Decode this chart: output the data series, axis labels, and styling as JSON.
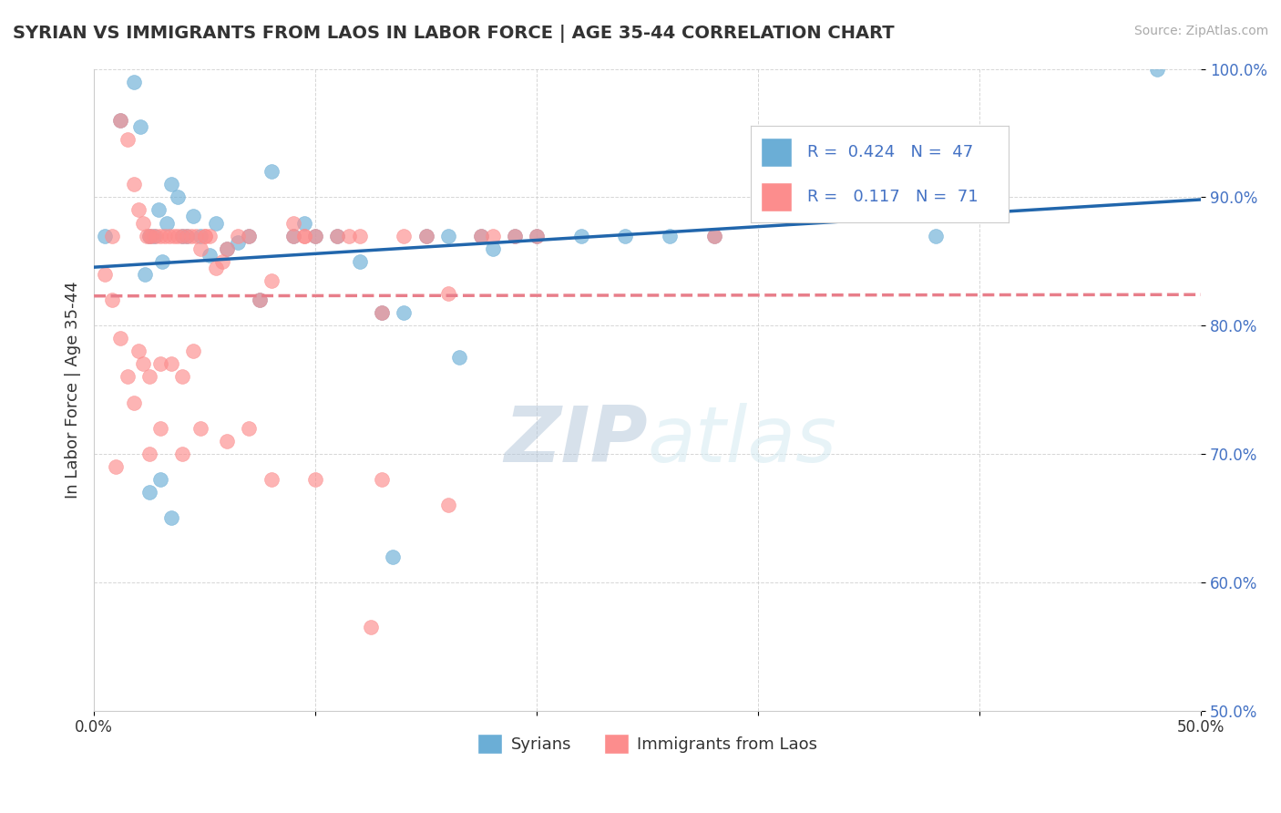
{
  "title": "SYRIAN VS IMMIGRANTS FROM LAOS IN LABOR FORCE | AGE 35-44 CORRELATION CHART",
  "source": "Source: ZipAtlas.com",
  "ylabel": "In Labor Force | Age 35-44",
  "xlim": [
    0.0,
    0.5
  ],
  "ylim": [
    0.5,
    1.0
  ],
  "y_ticks": [
    0.5,
    0.6,
    0.7,
    0.8,
    0.9,
    1.0
  ],
  "y_tick_labels": [
    "50.0%",
    "60.0%",
    "70.0%",
    "80.0%",
    "90.0%",
    "100.0%"
  ],
  "blue_color": "#6baed6",
  "pink_color": "#fc8d8d",
  "blue_line_color": "#2166ac",
  "pink_line_color": "#e87e8a",
  "legend_r_blue": "0.424",
  "legend_n_blue": "47",
  "legend_r_pink": "0.117",
  "legend_n_pink": "71",
  "legend_label_blue": "Syrians",
  "legend_label_pink": "Immigrants from Laos",
  "watermark_zip": "ZIP",
  "watermark_atlas": "atlas",
  "blue_x": [
    0.005,
    0.012,
    0.018,
    0.021,
    0.023,
    0.025,
    0.027,
    0.029,
    0.031,
    0.033,
    0.035,
    0.038,
    0.04,
    0.042,
    0.045,
    0.048,
    0.052,
    0.055,
    0.06,
    0.065,
    0.07,
    0.075,
    0.08,
    0.09,
    0.095,
    0.1,
    0.11,
    0.12,
    0.13,
    0.14,
    0.15,
    0.16,
    0.175,
    0.18,
    0.19,
    0.2,
    0.22,
    0.24,
    0.26,
    0.28,
    0.03,
    0.035,
    0.025,
    0.165,
    0.135,
    0.38,
    0.48
  ],
  "blue_y": [
    0.87,
    0.96,
    0.99,
    0.955,
    0.84,
    0.87,
    0.87,
    0.89,
    0.85,
    0.88,
    0.91,
    0.9,
    0.87,
    0.87,
    0.885,
    0.87,
    0.855,
    0.88,
    0.86,
    0.865,
    0.87,
    0.82,
    0.92,
    0.87,
    0.88,
    0.87,
    0.87,
    0.85,
    0.81,
    0.81,
    0.87,
    0.87,
    0.87,
    0.86,
    0.87,
    0.87,
    0.87,
    0.87,
    0.87,
    0.87,
    0.68,
    0.65,
    0.67,
    0.775,
    0.62,
    0.87,
    1.0
  ],
  "pink_x": [
    0.005,
    0.008,
    0.012,
    0.015,
    0.018,
    0.02,
    0.022,
    0.024,
    0.026,
    0.028,
    0.03,
    0.032,
    0.034,
    0.036,
    0.038,
    0.04,
    0.042,
    0.044,
    0.046,
    0.048,
    0.05,
    0.052,
    0.055,
    0.058,
    0.06,
    0.065,
    0.07,
    0.075,
    0.08,
    0.09,
    0.095,
    0.1,
    0.11,
    0.12,
    0.13,
    0.14,
    0.15,
    0.16,
    0.175,
    0.18,
    0.19,
    0.2,
    0.008,
    0.012,
    0.015,
    0.018,
    0.02,
    0.022,
    0.025,
    0.03,
    0.035,
    0.04,
    0.045,
    0.01,
    0.025,
    0.03,
    0.04,
    0.048,
    0.06,
    0.07,
    0.08,
    0.1,
    0.13,
    0.16,
    0.09,
    0.05,
    0.025,
    0.28,
    0.125,
    0.095,
    0.115
  ],
  "pink_y": [
    0.84,
    0.87,
    0.96,
    0.945,
    0.91,
    0.89,
    0.88,
    0.87,
    0.87,
    0.87,
    0.87,
    0.87,
    0.87,
    0.87,
    0.87,
    0.87,
    0.87,
    0.87,
    0.87,
    0.86,
    0.87,
    0.87,
    0.845,
    0.85,
    0.86,
    0.87,
    0.87,
    0.82,
    0.835,
    0.87,
    0.87,
    0.87,
    0.87,
    0.87,
    0.81,
    0.87,
    0.87,
    0.825,
    0.87,
    0.87,
    0.87,
    0.87,
    0.82,
    0.79,
    0.76,
    0.74,
    0.78,
    0.77,
    0.76,
    0.77,
    0.77,
    0.76,
    0.78,
    0.69,
    0.7,
    0.72,
    0.7,
    0.72,
    0.71,
    0.72,
    0.68,
    0.68,
    0.68,
    0.66,
    0.88,
    0.87,
    0.87,
    0.87,
    0.565,
    0.87,
    0.87
  ]
}
